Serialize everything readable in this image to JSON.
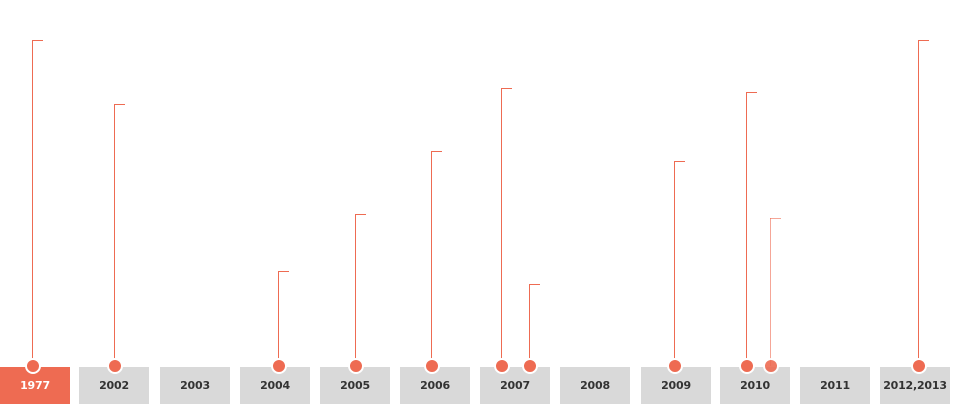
{
  "timeline": {
    "accent_color": "#ee6b52",
    "tab_color": "#d9d9d9",
    "active_year": "1977",
    "years": [
      {
        "label": "1977",
        "active": true
      },
      {
        "label": "2002",
        "active": false
      },
      {
        "label": "2003",
        "active": false
      },
      {
        "label": "2004",
        "active": false
      },
      {
        "label": "2005",
        "active": false
      },
      {
        "label": "2006",
        "active": false
      },
      {
        "label": "2007",
        "active": false
      },
      {
        "label": "2008",
        "active": false
      },
      {
        "label": "2009",
        "active": false
      },
      {
        "label": "2010",
        "active": false
      },
      {
        "label": "2011",
        "active": false
      },
      {
        "label": "2012,2013",
        "active": false
      }
    ],
    "markers": [
      {
        "year": "1977",
        "variant": "normal"
      },
      {
        "year": "2002",
        "variant": "normal"
      },
      {
        "year": "2004",
        "variant": "normal"
      },
      {
        "year": "2005",
        "variant": "normal"
      },
      {
        "year": "2006",
        "variant": "normal"
      },
      {
        "year": "2007",
        "variant": "normal"
      },
      {
        "year": "2007",
        "variant": "normal"
      },
      {
        "year": "2009",
        "variant": "normal"
      },
      {
        "year": "2010",
        "variant": "normal"
      },
      {
        "year": "2010",
        "variant": "faint"
      },
      {
        "year": "2012,2013",
        "variant": "normal"
      }
    ]
  }
}
